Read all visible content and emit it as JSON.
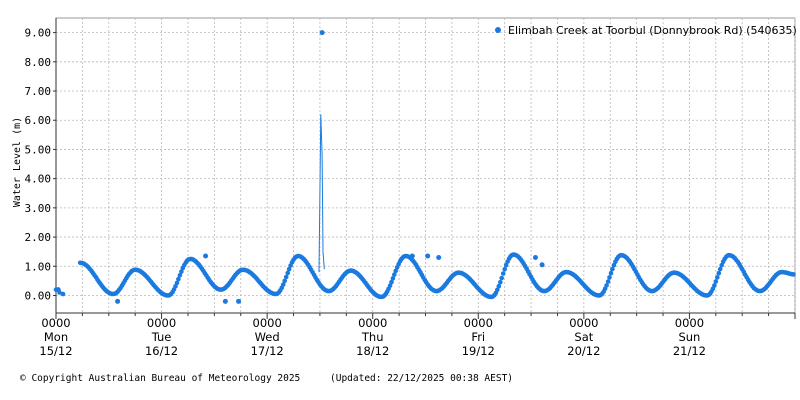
{
  "chart_data": {
    "type": "scatter",
    "title": "",
    "ylabel": "Water Level (m)",
    "xlabel": "",
    "ylim": [
      -0.6,
      9.5
    ],
    "xlim_hours": [
      0,
      168
    ],
    "y_ticks": [
      "0.00",
      "1.00",
      "2.00",
      "3.00",
      "4.00",
      "5.00",
      "6.00",
      "7.00",
      "8.00",
      "9.00"
    ],
    "y_tick_values": [
      0,
      1,
      2,
      3,
      4,
      5,
      6,
      7,
      8,
      9
    ],
    "x_ticks": [
      {
        "time": "0000",
        "day": "Mon",
        "date": "15/12"
      },
      {
        "time": "0000",
        "day": "Tue",
        "date": "16/12"
      },
      {
        "time": "0000",
        "day": "Wed",
        "date": "17/12"
      },
      {
        "time": "0000",
        "day": "Thu",
        "date": "18/12"
      },
      {
        "time": "0000",
        "day": "Fri",
        "date": "19/12"
      },
      {
        "time": "0000",
        "day": "Sat",
        "date": "20/12"
      },
      {
        "time": "0000",
        "day": "Sun",
        "date": "21/12"
      }
    ],
    "grid": true,
    "legend_position": "top-right",
    "series": [
      {
        "name": "Elimbah Creek at Toorbul (Donnybrook Rd) (540635)",
        "color": "#1a7ae0",
        "tide_highs": [
          {
            "t": 5.5,
            "v": 1.12
          },
          {
            "t": 13.0,
            "v": 0.05
          },
          {
            "t": 18.0,
            "v": 0.88
          },
          {
            "t": 25.5,
            "v": 0.0
          },
          {
            "t": 30.5,
            "v": 1.25
          },
          {
            "t": 37.5,
            "v": 0.2
          },
          {
            "t": 42.5,
            "v": 0.88
          },
          {
            "t": 50.0,
            "v": 0.05
          },
          {
            "t": 55.0,
            "v": 1.35
          },
          {
            "t": 62.0,
            "v": 0.15
          },
          {
            "t": 67.0,
            "v": 0.85
          },
          {
            "t": 74.0,
            "v": -0.05
          },
          {
            "t": 79.5,
            "v": 1.35
          },
          {
            "t": 86.5,
            "v": 0.15
          },
          {
            "t": 91.5,
            "v": 0.78
          },
          {
            "t": 99.0,
            "v": -0.05
          },
          {
            "t": 104.0,
            "v": 1.4
          },
          {
            "t": 111.0,
            "v": 0.15
          },
          {
            "t": 116.0,
            "v": 0.8
          },
          {
            "t": 123.5,
            "v": 0.0
          },
          {
            "t": 128.5,
            "v": 1.38
          },
          {
            "t": 135.5,
            "v": 0.15
          },
          {
            "t": 140.5,
            "v": 0.78
          },
          {
            "t": 148.0,
            "v": 0.0
          },
          {
            "t": 153.0,
            "v": 1.38
          },
          {
            "t": 160.0,
            "v": 0.15
          },
          {
            "t": 165.0,
            "v": 0.8
          },
          {
            "t": 168.0,
            "v": 0.72
          }
        ],
        "outliers": [
          {
            "t": 0.5,
            "v": 0.2
          },
          {
            "t": 14.0,
            "v": -0.2
          },
          {
            "t": 34.0,
            "v": 1.35
          },
          {
            "t": 38.5,
            "v": -0.2
          },
          {
            "t": 41.5,
            "v": -0.2
          },
          {
            "t": 60.5,
            "v": 9.0
          },
          {
            "t": 81.0,
            "v": 1.35
          },
          {
            "t": 84.5,
            "v": 1.35
          },
          {
            "t": 87.0,
            "v": 1.3
          },
          {
            "t": 109.0,
            "v": 1.3
          },
          {
            "t": 110.5,
            "v": 1.05
          }
        ],
        "spike": [
          {
            "t": 59.8,
            "v": 0.8
          },
          {
            "t": 60.2,
            "v": 6.2
          },
          {
            "t": 60.5,
            "v": 4.8
          },
          {
            "t": 60.7,
            "v": 1.5
          },
          {
            "t": 61.0,
            "v": 0.9
          }
        ]
      }
    ]
  },
  "footer": {
    "copyright": "© Copyright Australian Bureau of Meteorology 2025",
    "updated": "(Updated: 22/12/2025 00:38 AEST)"
  }
}
